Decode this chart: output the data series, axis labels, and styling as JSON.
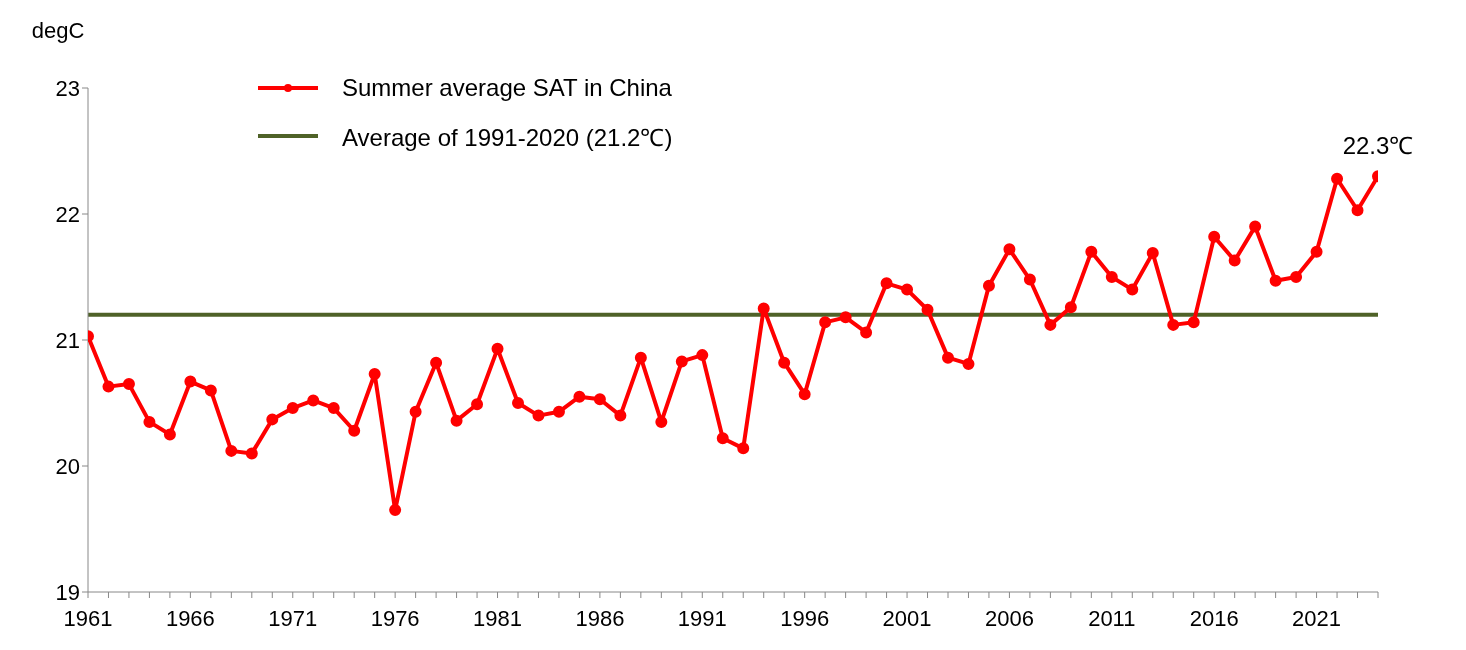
{
  "chart_data": {
    "type": "line",
    "ylabel": "degC",
    "x": [
      1961,
      1962,
      1963,
      1964,
      1965,
      1966,
      1967,
      1968,
      1969,
      1970,
      1971,
      1972,
      1973,
      1974,
      1975,
      1976,
      1977,
      1978,
      1979,
      1980,
      1981,
      1982,
      1983,
      1984,
      1985,
      1986,
      1987,
      1988,
      1989,
      1990,
      1991,
      1992,
      1993,
      1994,
      1995,
      1996,
      1997,
      1998,
      1999,
      2000,
      2001,
      2002,
      2003,
      2004,
      2005,
      2006,
      2007,
      2008,
      2009,
      2010,
      2011,
      2012,
      2013,
      2014,
      2015,
      2016,
      2017,
      2018,
      2019,
      2020,
      2021,
      2022,
      2023,
      2024
    ],
    "series": [
      {
        "name": "Summer average SAT in China",
        "color": "#ff0000",
        "values": [
          21.03,
          20.63,
          20.65,
          20.35,
          20.25,
          20.67,
          20.6,
          20.12,
          20.1,
          20.37,
          20.46,
          20.52,
          20.46,
          20.28,
          20.73,
          19.65,
          20.43,
          20.82,
          20.36,
          20.49,
          20.93,
          20.5,
          20.4,
          20.43,
          20.55,
          20.53,
          20.4,
          20.86,
          20.35,
          20.83,
          20.88,
          20.22,
          20.14,
          21.25,
          20.82,
          20.57,
          21.14,
          21.18,
          21.06,
          21.45,
          21.4,
          21.24,
          20.86,
          20.81,
          21.43,
          21.72,
          21.48,
          21.12,
          21.26,
          21.7,
          21.5,
          21.4,
          21.69,
          21.12,
          21.14,
          21.82,
          21.63,
          21.9,
          21.47,
          21.5,
          21.7,
          22.28,
          22.03,
          22.3
        ]
      }
    ],
    "ref_lines": [
      {
        "axis": "y",
        "value": 21.2,
        "label": "Average of 1991-2020 (21.2℃)",
        "color": "#4f6228"
      }
    ],
    "annotations": [
      {
        "text": "22.3℃",
        "x": 2024,
        "y": 22.3
      }
    ],
    "xlim": [
      1961,
      2024
    ],
    "xticks": [
      1961,
      {
        "value": 1962,
        "label": null
      },
      {
        "value": 1963,
        "label": null
      },
      {
        "value": 1964,
        "label": null
      },
      {
        "value": 1965,
        "label": null
      },
      1966,
      {
        "value": 1967,
        "label": null
      },
      {
        "value": 1968,
        "label": null
      },
      {
        "value": 1969,
        "label": null
      },
      {
        "value": 1970,
        "label": null
      },
      1971,
      {
        "value": 1972,
        "label": null
      },
      {
        "value": 1973,
        "label": null
      },
      {
        "value": 1974,
        "label": null
      },
      {
        "value": 1975,
        "label": null
      },
      1976,
      {
        "value": 1977,
        "label": null
      },
      {
        "value": 1978,
        "label": null
      },
      {
        "value": 1979,
        "label": null
      },
      {
        "value": 1980,
        "label": null
      },
      1981,
      {
        "value": 1982,
        "label": null
      },
      {
        "value": 1983,
        "label": null
      },
      {
        "value": 1984,
        "label": null
      },
      {
        "value": 1985,
        "label": null
      },
      1986,
      {
        "value": 1987,
        "label": null
      },
      {
        "value": 1988,
        "label": null
      },
      {
        "value": 1989,
        "label": null
      },
      {
        "value": 1990,
        "label": null
      },
      1991,
      {
        "value": 1992,
        "label": null
      },
      {
        "value": 1993,
        "label": null
      },
      {
        "value": 1994,
        "label": null
      },
      {
        "value": 1995,
        "label": null
      },
      1996,
      {
        "value": 1997,
        "label": null
      },
      {
        "value": 1998,
        "label": null
      },
      {
        "value": 1999,
        "label": null
      },
      {
        "value": 2000,
        "label": null
      },
      2001,
      {
        "value": 2002,
        "label": null
      },
      {
        "value": 2003,
        "label": null
      },
      {
        "value": 2004,
        "label": null
      },
      {
        "value": 2005,
        "label": null
      },
      2006,
      {
        "value": 2007,
        "label": null
      },
      {
        "value": 2008,
        "label": null
      },
      {
        "value": 2009,
        "label": null
      },
      {
        "value": 2010,
        "label": null
      },
      2011,
      {
        "value": 2012,
        "label": null
      },
      {
        "value": 2013,
        "label": null
      },
      {
        "value": 2014,
        "label": null
      },
      {
        "value": 2015,
        "label": null
      },
      2016,
      {
        "value": 2017,
        "label": null
      },
      {
        "value": 2018,
        "label": null
      },
      {
        "value": 2019,
        "label": null
      },
      {
        "value": 2020,
        "label": null
      },
      2021,
      {
        "value": 2022,
        "label": null
      },
      {
        "value": 2023,
        "label": null
      },
      {
        "value": 2024,
        "label": null
      }
    ],
    "ylim": [
      19,
      23
    ],
    "yticks": [
      19,
      20,
      21,
      22,
      23
    ],
    "grid": false,
    "legend": "top left",
    "marker": "circle",
    "line_style": "solid"
  }
}
